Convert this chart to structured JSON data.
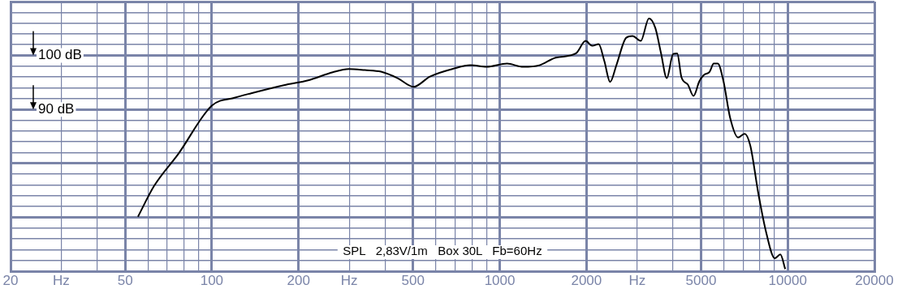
{
  "chart_data": {
    "type": "line",
    "x": [
      55.4,
      63,
      76.6,
      100,
      120.6,
      137,
      178,
      216,
      263,
      299,
      340,
      387,
      442,
      502,
      572,
      694,
      791,
      901,
      1060,
      1206,
      1374,
      1564,
      1839,
      1987,
      2094,
      2205,
      2307,
      2417,
      2541,
      2749,
      2891,
      3088,
      3296,
      3470,
      3632,
      3802,
      4000,
      4133,
      4274,
      4500,
      4709,
      4931,
      5118,
      5357,
      5533,
      5715,
      5984,
      6307,
      6729,
      7083,
      7413,
      7913,
      8443,
      9016,
      9427,
      9803
    ],
    "series": [
      {
        "color": "#000000",
        "values": [
          70.1,
          75.8,
          81.8,
          90.7,
          92.2,
          93.0,
          94.5,
          95.4,
          96.9,
          97.5,
          97.3,
          97.0,
          95.8,
          94.2,
          96.1,
          97.6,
          98.2,
          97.9,
          98.5,
          97.9,
          98.2,
          99.6,
          100.4,
          102.7,
          101.8,
          102.1,
          99.0,
          95.1,
          98.2,
          103.3,
          103.6,
          102.7,
          106.9,
          105.1,
          100.4,
          95.8,
          100.3,
          100.4,
          96.0,
          94.6,
          92.5,
          95.2,
          96.4,
          97.0,
          98.5,
          98.5,
          95.2,
          88.5,
          84.8,
          85.5,
          83.3,
          74.3,
          66.9,
          62.4,
          63.1,
          60.4
        ]
      }
    ],
    "log": "x",
    "xlim": [
      20,
      20000
    ],
    "xticks": [
      20,
      {
        "value": 30,
        "label": "Hz"
      },
      {
        "value": 40,
        "label": null
      },
      50,
      {
        "value": 60,
        "label": null
      },
      {
        "value": 70,
        "label": null
      },
      {
        "value": 80,
        "label": null
      },
      {
        "value": 90,
        "label": null
      },
      100,
      200,
      {
        "value": 300,
        "label": "Hz"
      },
      {
        "value": 400,
        "label": null
      },
      500,
      {
        "value": 600,
        "label": null
      },
      {
        "value": 700,
        "label": null
      },
      {
        "value": 800,
        "label": null
      },
      {
        "value": 900,
        "label": null
      },
      1000,
      2000,
      {
        "value": 3000,
        "label": "Hz"
      },
      {
        "value": 4000,
        "label": null
      },
      5000,
      {
        "value": 6000,
        "label": null
      },
      {
        "value": 7000,
        "label": null
      },
      {
        "value": 8000,
        "label": null
      },
      {
        "value": 9000,
        "label": null
      },
      10000,
      20000
    ],
    "ylim": [
      60,
      110
    ],
    "yticks": [
      {
        "value": 60,
        "label": null
      },
      {
        "value": 62,
        "label": null
      },
      {
        "value": 64,
        "label": null
      },
      {
        "value": 66,
        "label": null
      },
      {
        "value": 68,
        "label": null
      },
      {
        "value": 70,
        "label": null
      },
      {
        "value": 72,
        "label": null
      },
      {
        "value": 74,
        "label": null
      },
      {
        "value": 76,
        "label": null
      },
      {
        "value": 78,
        "label": null
      },
      {
        "value": 80,
        "label": null
      },
      {
        "value": 82,
        "label": null
      },
      {
        "value": 84,
        "label": null
      },
      {
        "value": 86,
        "label": null
      },
      {
        "value": 88,
        "label": null
      },
      {
        "value": 90,
        "label": "90 dB"
      },
      {
        "value": 92,
        "label": null
      },
      {
        "value": 94,
        "label": null
      },
      {
        "value": 96,
        "label": null
      },
      {
        "value": 98,
        "label": null
      },
      {
        "value": 100,
        "label": "100 dB"
      },
      {
        "value": 102,
        "label": null
      },
      {
        "value": 104,
        "label": null
      },
      {
        "value": 106,
        "label": null
      },
      {
        "value": 108,
        "label": null
      },
      {
        "value": 110,
        "label": null
      }
    ],
    "grid": true,
    "marker": "none",
    "line_style": "solid",
    "annotations": [
      "SPL   2,83V/1m   Box 30L   Fb=60Hz"
    ]
  }
}
